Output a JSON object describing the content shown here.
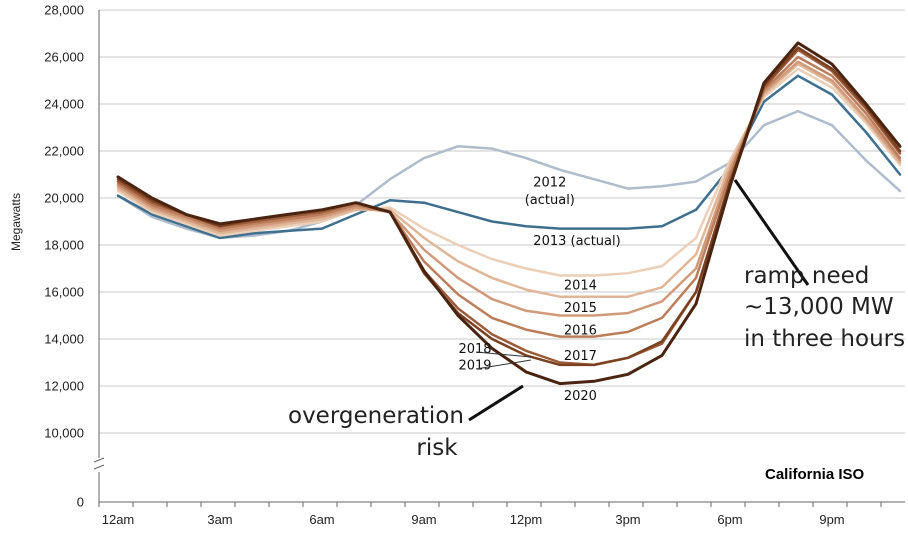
{
  "chart_data": {
    "type": "line",
    "ylabel": "Megawatts",
    "xlabel": "",
    "y_ticks": [
      "28,000",
      "26,000",
      "24,000",
      "22,000",
      "20,000",
      "18,000",
      "16,000",
      "14,000",
      "12,000",
      "10,000",
      "0"
    ],
    "y_tick_values": [
      28000,
      26000,
      24000,
      22000,
      20000,
      18000,
      16000,
      14000,
      12000,
      10000,
      0
    ],
    "ylim": [
      10000,
      28000
    ],
    "y_axis_break": true,
    "x_ticks": [
      "12am",
      "3am",
      "6am",
      "9am",
      "12pm",
      "3pm",
      "6pm",
      "9pm"
    ],
    "x": [
      0,
      1,
      2,
      3,
      4,
      5,
      6,
      7,
      8,
      9,
      10,
      11,
      12,
      13,
      14,
      15,
      16,
      17,
      18,
      19,
      20,
      21,
      22,
      23
    ],
    "grid": "horizontal",
    "series": [
      {
        "name": "2012 (actual)",
        "color": "#aebccb",
        "width": 2.5,
        "values": [
          20100,
          19200,
          18700,
          18300,
          18400,
          18600,
          19000,
          19700,
          20800,
          21700,
          22200,
          22100,
          21700,
          21200,
          20800,
          20400,
          20500,
          20700,
          21500,
          23100,
          23700,
          23100,
          21600,
          20300
        ]
      },
      {
        "name": "2013 (actual)",
        "color": "#3f6f8f",
        "width": 2.5,
        "values": [
          20100,
          19300,
          18800,
          18300,
          18500,
          18600,
          18700,
          19300,
          19900,
          19800,
          19400,
          19000,
          18800,
          18700,
          18700,
          18700,
          18800,
          19500,
          21300,
          24100,
          25200,
          24400,
          22800,
          21000
        ]
      },
      {
        "name": "2014",
        "color": "#ebcfb8",
        "width": 2.5,
        "values": [
          20300,
          19400,
          18900,
          18400,
          18600,
          18800,
          19000,
          19500,
          19600,
          18700,
          18000,
          17400,
          17000,
          16700,
          16700,
          16800,
          17100,
          18300,
          21600,
          24300,
          25500,
          24700,
          23200,
          21400
        ]
      },
      {
        "name": "2015",
        "color": "#dfb698",
        "width": 2.5,
        "values": [
          20400,
          19500,
          19000,
          18500,
          18700,
          18900,
          19100,
          19500,
          19500,
          18300,
          17300,
          16600,
          16100,
          15800,
          15800,
          15800,
          16200,
          17600,
          21400,
          24400,
          25700,
          24900,
          23300,
          21500
        ]
      },
      {
        "name": "2016",
        "color": "#d09a7a",
        "width": 2.5,
        "values": [
          20500,
          19600,
          19100,
          18600,
          18800,
          19000,
          19200,
          19600,
          19400,
          17800,
          16600,
          15700,
          15200,
          15000,
          15000,
          15100,
          15600,
          17000,
          21200,
          24500,
          25800,
          25000,
          23400,
          21600
        ]
      },
      {
        "name": "2017",
        "color": "#bc7d5a",
        "width": 2.5,
        "values": [
          20600,
          19700,
          19200,
          18700,
          18900,
          19100,
          19300,
          19700,
          19400,
          17300,
          15900,
          14900,
          14400,
          14100,
          14100,
          14300,
          14900,
          16600,
          21000,
          24600,
          26000,
          25200,
          23600,
          21700
        ]
      },
      {
        "name": "2018",
        "color": "#9c5c3a",
        "width": 2.5,
        "values": [
          20700,
          19800,
          19300,
          18800,
          19000,
          19200,
          19400,
          19800,
          19400,
          16900,
          15300,
          14200,
          13500,
          13000,
          12900,
          13200,
          13800,
          16000,
          20600,
          24700,
          26300,
          25400,
          23800,
          21900
        ]
      },
      {
        "name": "2019",
        "color": "#7a4020",
        "width": 2.5,
        "values": [
          20800,
          19900,
          19300,
          18800,
          19100,
          19300,
          19500,
          19800,
          19400,
          16800,
          15100,
          14000,
          13300,
          12900,
          12900,
          13200,
          13900,
          16000,
          20700,
          24800,
          26400,
          25500,
          23900,
          22000
        ]
      },
      {
        "name": "2020",
        "color": "#4a2410",
        "width": 3,
        "values": [
          20900,
          20000,
          19300,
          18900,
          19100,
          19300,
          19500,
          19800,
          19400,
          16900,
          15000,
          13600,
          12600,
          12100,
          12200,
          12500,
          13300,
          15500,
          20500,
          24900,
          26600,
          25700,
          24000,
          22200
        ]
      }
    ],
    "series_labels": [
      {
        "text": "2012",
        "anchor_x": 12.7,
        "anchor_y": 20500
      },
      {
        "text": "(actual)",
        "anchor_x": 12.7,
        "anchor_y": 19750
      },
      {
        "text": "2013 (actual)",
        "anchor_x": 13.5,
        "anchor_y": 18000
      },
      {
        "text": "2014",
        "anchor_x": 13.6,
        "anchor_y": 16100
      },
      {
        "text": "2015",
        "anchor_x": 13.6,
        "anchor_y": 15150
      },
      {
        "text": "2016",
        "anchor_x": 13.6,
        "anchor_y": 14200
      },
      {
        "text": "2017",
        "anchor_x": 13.6,
        "anchor_y": 13100
      },
      {
        "text": "2018",
        "anchor_x": 10.5,
        "anchor_y": 13400
      },
      {
        "text": "2019",
        "anchor_x": 10.5,
        "anchor_y": 12700
      },
      {
        "text": "2020",
        "anchor_x": 13.6,
        "anchor_y": 11400
      }
    ],
    "annotations": {
      "ramp_lines": [
        "ramp need",
        "~13,000 MW",
        "in three hours"
      ],
      "overgen_lines": [
        "overgeneration",
        "risk"
      ]
    },
    "source_label": "California ISO"
  }
}
